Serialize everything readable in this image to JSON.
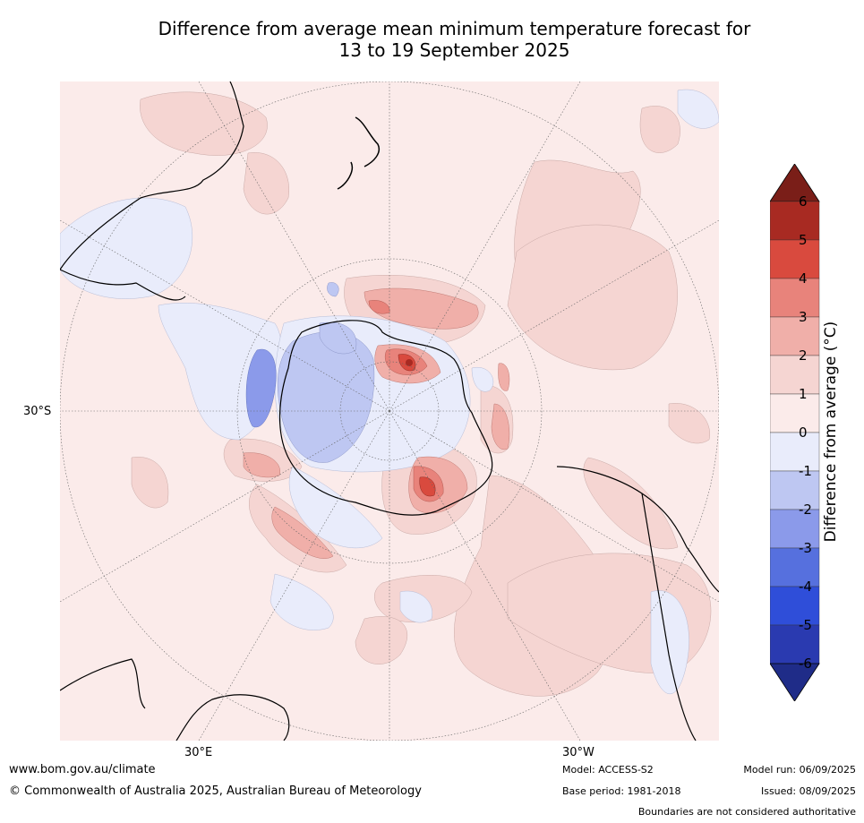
{
  "title": {
    "line1": "Difference from average mean minimum temperature forecast for",
    "line2": "13 to 19 September 2025"
  },
  "map": {
    "projection": "south polar stereographic",
    "lat_label": "30°S",
    "lon_labels": [
      "30°E",
      "30°W"
    ],
    "feature_icons": [
      "new-zealand-icon",
      "australia-icon",
      "antarctica-icon",
      "south-america-icon",
      "africa-icon"
    ]
  },
  "colorbar": {
    "label": "Difference from average (°C)",
    "ticks": [
      "6",
      "5",
      "4",
      "3",
      "2",
      "1",
      "0",
      "-1",
      "-2",
      "-3",
      "-4",
      "-5",
      "-6"
    ],
    "colors": [
      "#7a1e18",
      "#a82a22",
      "#d94a3e",
      "#e8837b",
      "#f0afa9",
      "#f5d5d2",
      "#fbebea",
      "#e9ecfb",
      "#bec7f2",
      "#8b9aea",
      "#5670de",
      "#2f4ed9",
      "#2a3ab0",
      "#1f2c88"
    ]
  },
  "footer": {
    "website": "www.bom.gov.au/climate",
    "copyright": "© Commonwealth of Australia 2025, Australian Bureau of Meteorology",
    "model": "Model: ACCESS-S2",
    "base_period": "Base period: 1981-2018",
    "model_run": "Model run: 06/09/2025",
    "issued": "Issued: 08/09/2025",
    "disclaimer": "Boundaries are not considered authoritative"
  }
}
